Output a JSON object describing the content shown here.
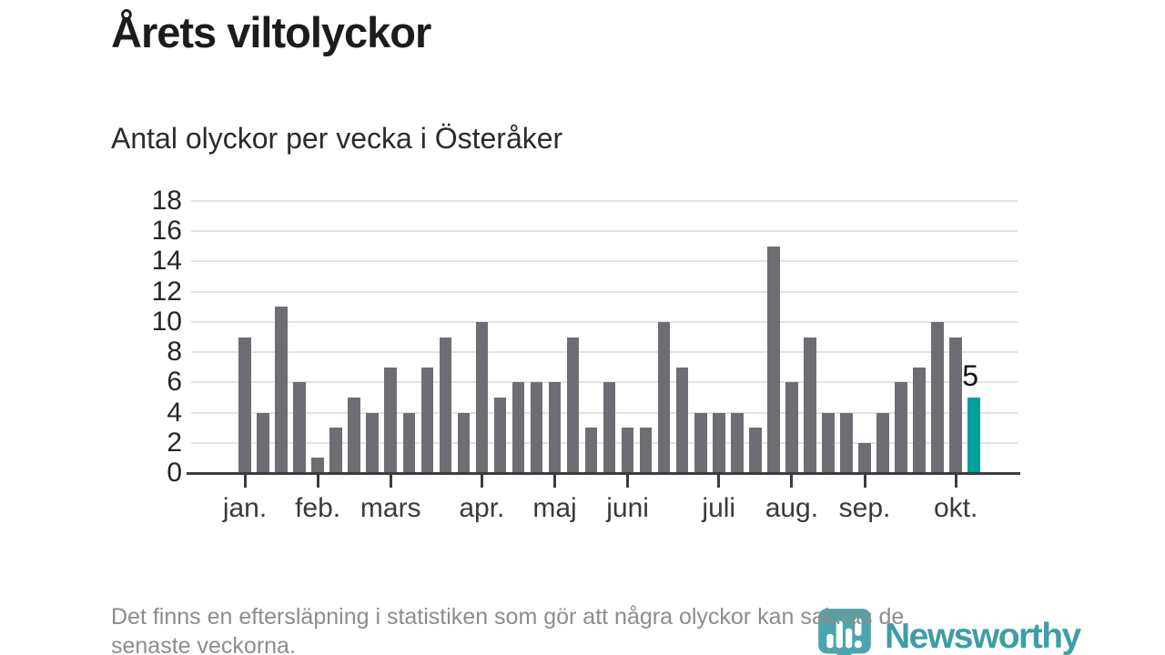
{
  "title": "Årets viltolyckor",
  "subtitle": "Antal olyckor per vecka i Österåker",
  "footnote": {
    "lines": [
      "Det finns en eftersläpning i statistiken som gör att några olyckor kan saknas de",
      "senaste veckorna."
    ]
  },
  "branding": {
    "logo_text": "Newsworthy",
    "logo_text_color": "#3d9fa5",
    "icon_color": "#4aa6ac",
    "icon_name": "newsworthy-speech-bubble-chart-icon"
  },
  "chart_data": {
    "type": "bar",
    "title": "Årets viltolyckor",
    "subtitle": "Antal olyckor per vecka i Österåker",
    "x_unit": "vecka",
    "values": [
      9,
      4,
      11,
      6,
      1,
      3,
      5,
      4,
      7,
      4,
      7,
      9,
      4,
      10,
      5,
      6,
      6,
      6,
      9,
      3,
      6,
      3,
      3,
      10,
      7,
      4,
      4,
      4,
      3,
      15,
      6,
      9,
      4,
      4,
      2,
      4,
      6,
      7,
      10,
      9,
      5
    ],
    "highlight_last_bar": true,
    "last_value_label": "5",
    "colors": {
      "bar": "#6e6d73",
      "highlight": "#00a09b",
      "gridline": "#e3e3e3",
      "axis": "#3c3c3c"
    },
    "y_axis": {
      "min": 0,
      "max": 18,
      "tick_step": 2,
      "ticks": [
        0,
        2,
        4,
        6,
        8,
        10,
        12,
        14,
        16,
        18
      ]
    },
    "x_axis": {
      "tick_indices": [
        0,
        4,
        8,
        13,
        17,
        21,
        26,
        30,
        34,
        39
      ],
      "tick_labels": [
        "jan.",
        "feb.",
        "mars",
        "apr.",
        "maj",
        "juni",
        "juli",
        "aug.",
        "sep.",
        "okt."
      ]
    },
    "grid": true,
    "legend": false
  }
}
